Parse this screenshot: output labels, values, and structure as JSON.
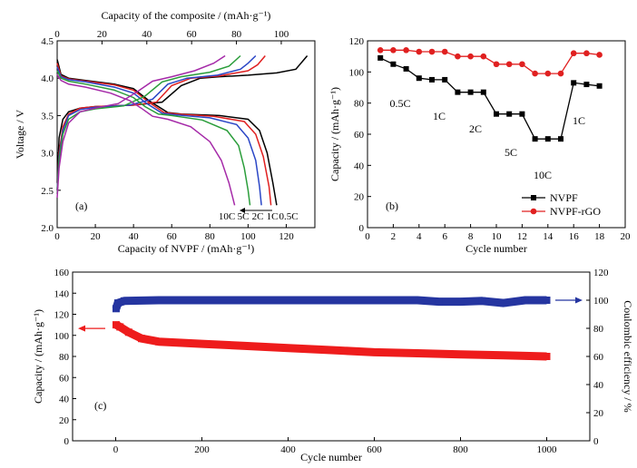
{
  "chart_data": [
    {
      "panel_label": "(a)",
      "type": "line",
      "xlabel": "Capacity of NVPF / (mAh·g⁻¹)",
      "x2label": "Capacity of the composite / (mAh·g⁻¹)",
      "ylabel": "Voltage / V",
      "xlim": [
        0,
        135
      ],
      "x2lim": [
        0,
        115
      ],
      "ylim": [
        2.0,
        4.5
      ],
      "xticks": [
        0,
        20,
        40,
        60,
        80,
        100,
        120
      ],
      "x2ticks": [
        0,
        20,
        40,
        60,
        80,
        100
      ],
      "yticks": [
        2.0,
        2.5,
        3.0,
        3.5,
        4.0,
        4.5
      ],
      "legend_annotation": [
        "10C",
        "5C",
        "2C",
        "1C",
        "0.5C"
      ],
      "series": [
        {
          "name": "0.5C",
          "color": "#000000",
          "charge": [
            [
              0,
              2.6
            ],
            [
              1,
              3.2
            ],
            [
              3,
              3.45
            ],
            [
              6,
              3.55
            ],
            [
              12,
              3.6
            ],
            [
              20,
              3.62
            ],
            [
              40,
              3.64
            ],
            [
              55,
              3.68
            ],
            [
              65,
              3.9
            ],
            [
              75,
              4.0
            ],
            [
              85,
              4.02
            ],
            [
              100,
              4.04
            ],
            [
              115,
              4.07
            ],
            [
              125,
              4.12
            ],
            [
              131,
              4.3
            ]
          ],
          "discharge": [
            [
              0,
              4.25
            ],
            [
              2,
              4.05
            ],
            [
              6,
              4.0
            ],
            [
              15,
              3.97
            ],
            [
              30,
              3.92
            ],
            [
              40,
              3.86
            ],
            [
              48,
              3.7
            ],
            [
              58,
              3.54
            ],
            [
              65,
              3.52
            ],
            [
              85,
              3.5
            ],
            [
              100,
              3.45
            ],
            [
              106,
              3.3
            ],
            [
              110,
              3.0
            ],
            [
              113,
              2.6
            ],
            [
              115,
              2.3
            ]
          ]
        },
        {
          "name": "1C",
          "color": "#e02020",
          "charge": [
            [
              0,
              2.5
            ],
            [
              1,
              3.0
            ],
            [
              3,
              3.35
            ],
            [
              6,
              3.52
            ],
            [
              12,
              3.6
            ],
            [
              20,
              3.62
            ],
            [
              40,
              3.64
            ],
            [
              52,
              3.68
            ],
            [
              60,
              3.9
            ],
            [
              70,
              4.0
            ],
            [
              85,
              4.03
            ],
            [
              100,
              4.1
            ],
            [
              105,
              4.18
            ],
            [
              109,
              4.3
            ]
          ],
          "discharge": [
            [
              0,
              4.2
            ],
            [
              2,
              4.03
            ],
            [
              6,
              3.99
            ],
            [
              15,
              3.96
            ],
            [
              30,
              3.91
            ],
            [
              40,
              3.84
            ],
            [
              48,
              3.68
            ],
            [
              56,
              3.54
            ],
            [
              63,
              3.52
            ],
            [
              82,
              3.49
            ],
            [
              98,
              3.42
            ],
            [
              104,
              3.25
            ],
            [
              108,
              2.95
            ],
            [
              111,
              2.55
            ],
            [
              112,
              2.3
            ]
          ]
        },
        {
          "name": "2C",
          "color": "#2a46c6",
          "charge": [
            [
              0,
              2.5
            ],
            [
              1,
              2.95
            ],
            [
              3,
              3.3
            ],
            [
              6,
              3.5
            ],
            [
              12,
              3.58
            ],
            [
              20,
              3.61
            ],
            [
              38,
              3.64
            ],
            [
              50,
              3.72
            ],
            [
              58,
              3.92
            ],
            [
              68,
              4.0
            ],
            [
              84,
              4.04
            ],
            [
              96,
              4.12
            ],
            [
              100,
              4.2
            ],
            [
              104,
              4.3
            ]
          ],
          "discharge": [
            [
              0,
              4.15
            ],
            [
              2,
              4.02
            ],
            [
              6,
              3.98
            ],
            [
              15,
              3.95
            ],
            [
              30,
              3.88
            ],
            [
              40,
              3.8
            ],
            [
              47,
              3.66
            ],
            [
              55,
              3.53
            ],
            [
              62,
              3.51
            ],
            [
              80,
              3.47
            ],
            [
              94,
              3.38
            ],
            [
              100,
              3.2
            ],
            [
              104,
              2.9
            ],
            [
              106,
              2.55
            ],
            [
              107,
              2.3
            ]
          ]
        },
        {
          "name": "5C",
          "color": "#2a9d3a",
          "charge": [
            [
              0,
              2.45
            ],
            [
              1,
              2.9
            ],
            [
              3,
              3.25
            ],
            [
              6,
              3.45
            ],
            [
              12,
              3.55
            ],
            [
              20,
              3.59
            ],
            [
              35,
              3.63
            ],
            [
              46,
              3.76
            ],
            [
              55,
              3.95
            ],
            [
              65,
              4.02
            ],
            [
              80,
              4.08
            ],
            [
              90,
              4.16
            ],
            [
              96,
              4.3
            ]
          ],
          "discharge": [
            [
              0,
              4.1
            ],
            [
              2,
              4.0
            ],
            [
              6,
              3.96
            ],
            [
              15,
              3.92
            ],
            [
              30,
              3.84
            ],
            [
              40,
              3.74
            ],
            [
              46,
              3.62
            ],
            [
              53,
              3.52
            ],
            [
              60,
              3.5
            ],
            [
              76,
              3.44
            ],
            [
              89,
              3.3
            ],
            [
              95,
              3.1
            ],
            [
              98,
              2.8
            ],
            [
              100,
              2.5
            ],
            [
              101,
              2.3
            ]
          ]
        },
        {
          "name": "10C",
          "color": "#a52aa8",
          "charge": [
            [
              0,
              2.4
            ],
            [
              1,
              2.8
            ],
            [
              3,
              3.15
            ],
            [
              6,
              3.4
            ],
            [
              12,
              3.55
            ],
            [
              20,
              3.6
            ],
            [
              32,
              3.66
            ],
            [
              42,
              3.82
            ],
            [
              50,
              3.96
            ],
            [
              60,
              4.02
            ],
            [
              72,
              4.1
            ],
            [
              82,
              4.2
            ],
            [
              88,
              4.3
            ]
          ],
          "discharge": [
            [
              0,
              4.05
            ],
            [
              2,
              3.97
            ],
            [
              6,
              3.92
            ],
            [
              15,
              3.88
            ],
            [
              28,
              3.8
            ],
            [
              38,
              3.7
            ],
            [
              44,
              3.6
            ],
            [
              50,
              3.49
            ],
            [
              58,
              3.45
            ],
            [
              70,
              3.35
            ],
            [
              80,
              3.15
            ],
            [
              86,
              2.9
            ],
            [
              90,
              2.6
            ],
            [
              92,
              2.4
            ],
            [
              93,
              2.3
            ]
          ]
        }
      ]
    },
    {
      "panel_label": "(b)",
      "type": "line",
      "xlabel": "Cycle number",
      "ylabel": "Capacity / (mAh·g⁻¹)",
      "xlim": [
        0,
        20
      ],
      "ylim": [
        0,
        120
      ],
      "xticks": [
        0,
        2,
        4,
        6,
        8,
        10,
        12,
        14,
        16,
        18,
        20
      ],
      "yticks": [
        0,
        20,
        40,
        60,
        80,
        100,
        120
      ],
      "x": [
        1,
        2,
        3,
        4,
        5,
        6,
        7,
        8,
        9,
        10,
        11,
        12,
        13,
        14,
        15,
        16,
        17,
        18
      ],
      "series": [
        {
          "name": "NVPF",
          "color": "#000000",
          "marker": "square",
          "values": [
            109,
            105,
            102,
            96,
            95,
            95,
            87,
            87,
            87,
            73,
            73,
            73,
            57,
            57,
            57,
            93,
            92,
            91
          ]
        },
        {
          "name": "NVPF-rGO",
          "color": "#e02020",
          "marker": "circle",
          "values": [
            114,
            114,
            114,
            113,
            113,
            113,
            110,
            110,
            110,
            105,
            105,
            105,
            99,
            99,
            99,
            112,
            112,
            111
          ]
        }
      ],
      "annotations": [
        "0.5C",
        "1C",
        "2C",
        "5C",
        "10C",
        "1C"
      ],
      "legend": "bottom-right"
    },
    {
      "panel_label": "(c)",
      "type": "scatter",
      "xlabel": "Cycle number",
      "ylabel": "Capacity / (mAh·g⁻¹)",
      "y2label": "Coulombic efficiency / %",
      "xlim": [
        -100,
        1100
      ],
      "ylim": [
        0,
        160
      ],
      "y2lim": [
        0,
        120
      ],
      "xticks": [
        0,
        200,
        400,
        600,
        800,
        1000
      ],
      "yticks": [
        0,
        20,
        40,
        60,
        80,
        100,
        120,
        140,
        160
      ],
      "y2ticks": [
        0,
        20,
        40,
        60,
        80,
        100,
        120
      ],
      "series": [
        {
          "name": "Capacity",
          "axis": "left",
          "color": "#ee1c1c",
          "points": [
            [
              1,
              110
            ],
            [
              10,
              108
            ],
            [
              30,
              103
            ],
            [
              60,
              97
            ],
            [
              100,
              94
            ],
            [
              200,
              92
            ],
            [
              300,
              90
            ],
            [
              400,
              88
            ],
            [
              500,
              86
            ],
            [
              600,
              84
            ],
            [
              700,
              83
            ],
            [
              800,
              82
            ],
            [
              900,
              81
            ],
            [
              1000,
              80
            ]
          ]
        },
        {
          "name": "Coulombic efficiency",
          "axis": "right",
          "color": "#2535a0",
          "points": [
            [
              1,
              94
            ],
            [
              5,
              98
            ],
            [
              20,
              99.5
            ],
            [
              100,
              100
            ],
            [
              300,
              100
            ],
            [
              500,
              100
            ],
            [
              700,
              100
            ],
            [
              750,
              99
            ],
            [
              800,
              99
            ],
            [
              850,
              99.5
            ],
            [
              900,
              98
            ],
            [
              950,
              100
            ],
            [
              1000,
              100
            ]
          ]
        }
      ]
    }
  ]
}
